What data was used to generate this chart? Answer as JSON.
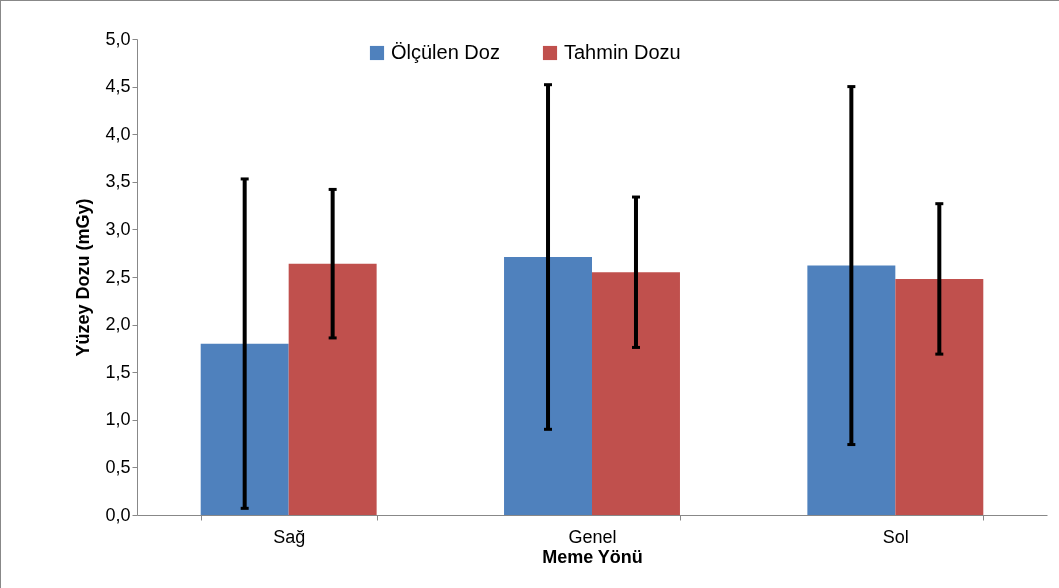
{
  "chart_data": {
    "type": "bar",
    "xlabel": "Meme Yönü",
    "ylabel": "Yüzey Dozu (mGy)",
    "categories": [
      "Sağ",
      "Genel",
      "Sol"
    ],
    "series": [
      {
        "name": "Ölçülen Doz",
        "color": "#4f81bd",
        "values": [
          1.8,
          2.71,
          2.62
        ],
        "errors": [
          1.73,
          1.81,
          1.88
        ]
      },
      {
        "name": "Tahmin Dozu",
        "color": "#c0504d",
        "values": [
          2.64,
          2.55,
          2.48
        ],
        "errors": [
          0.78,
          0.79,
          0.79
        ]
      }
    ],
    "ylim": [
      0,
      5
    ],
    "yticks": [
      {
        "value": 0,
        "label": "0,0"
      },
      {
        "value": 0.5,
        "label": "0,5"
      },
      {
        "value": 1,
        "label": "1,0"
      },
      {
        "value": 1.5,
        "label": "1,5"
      },
      {
        "value": 2,
        "label": "2,0"
      },
      {
        "value": 2.5,
        "label": "2,5"
      },
      {
        "value": 3,
        "label": "3,0"
      },
      {
        "value": 3.5,
        "label": "3,5"
      },
      {
        "value": 4,
        "label": "4,0"
      },
      {
        "value": 4.5,
        "label": "4,5"
      },
      {
        "value": 5,
        "label": "5,0"
      }
    ],
    "grid": false,
    "legend": "top"
  }
}
